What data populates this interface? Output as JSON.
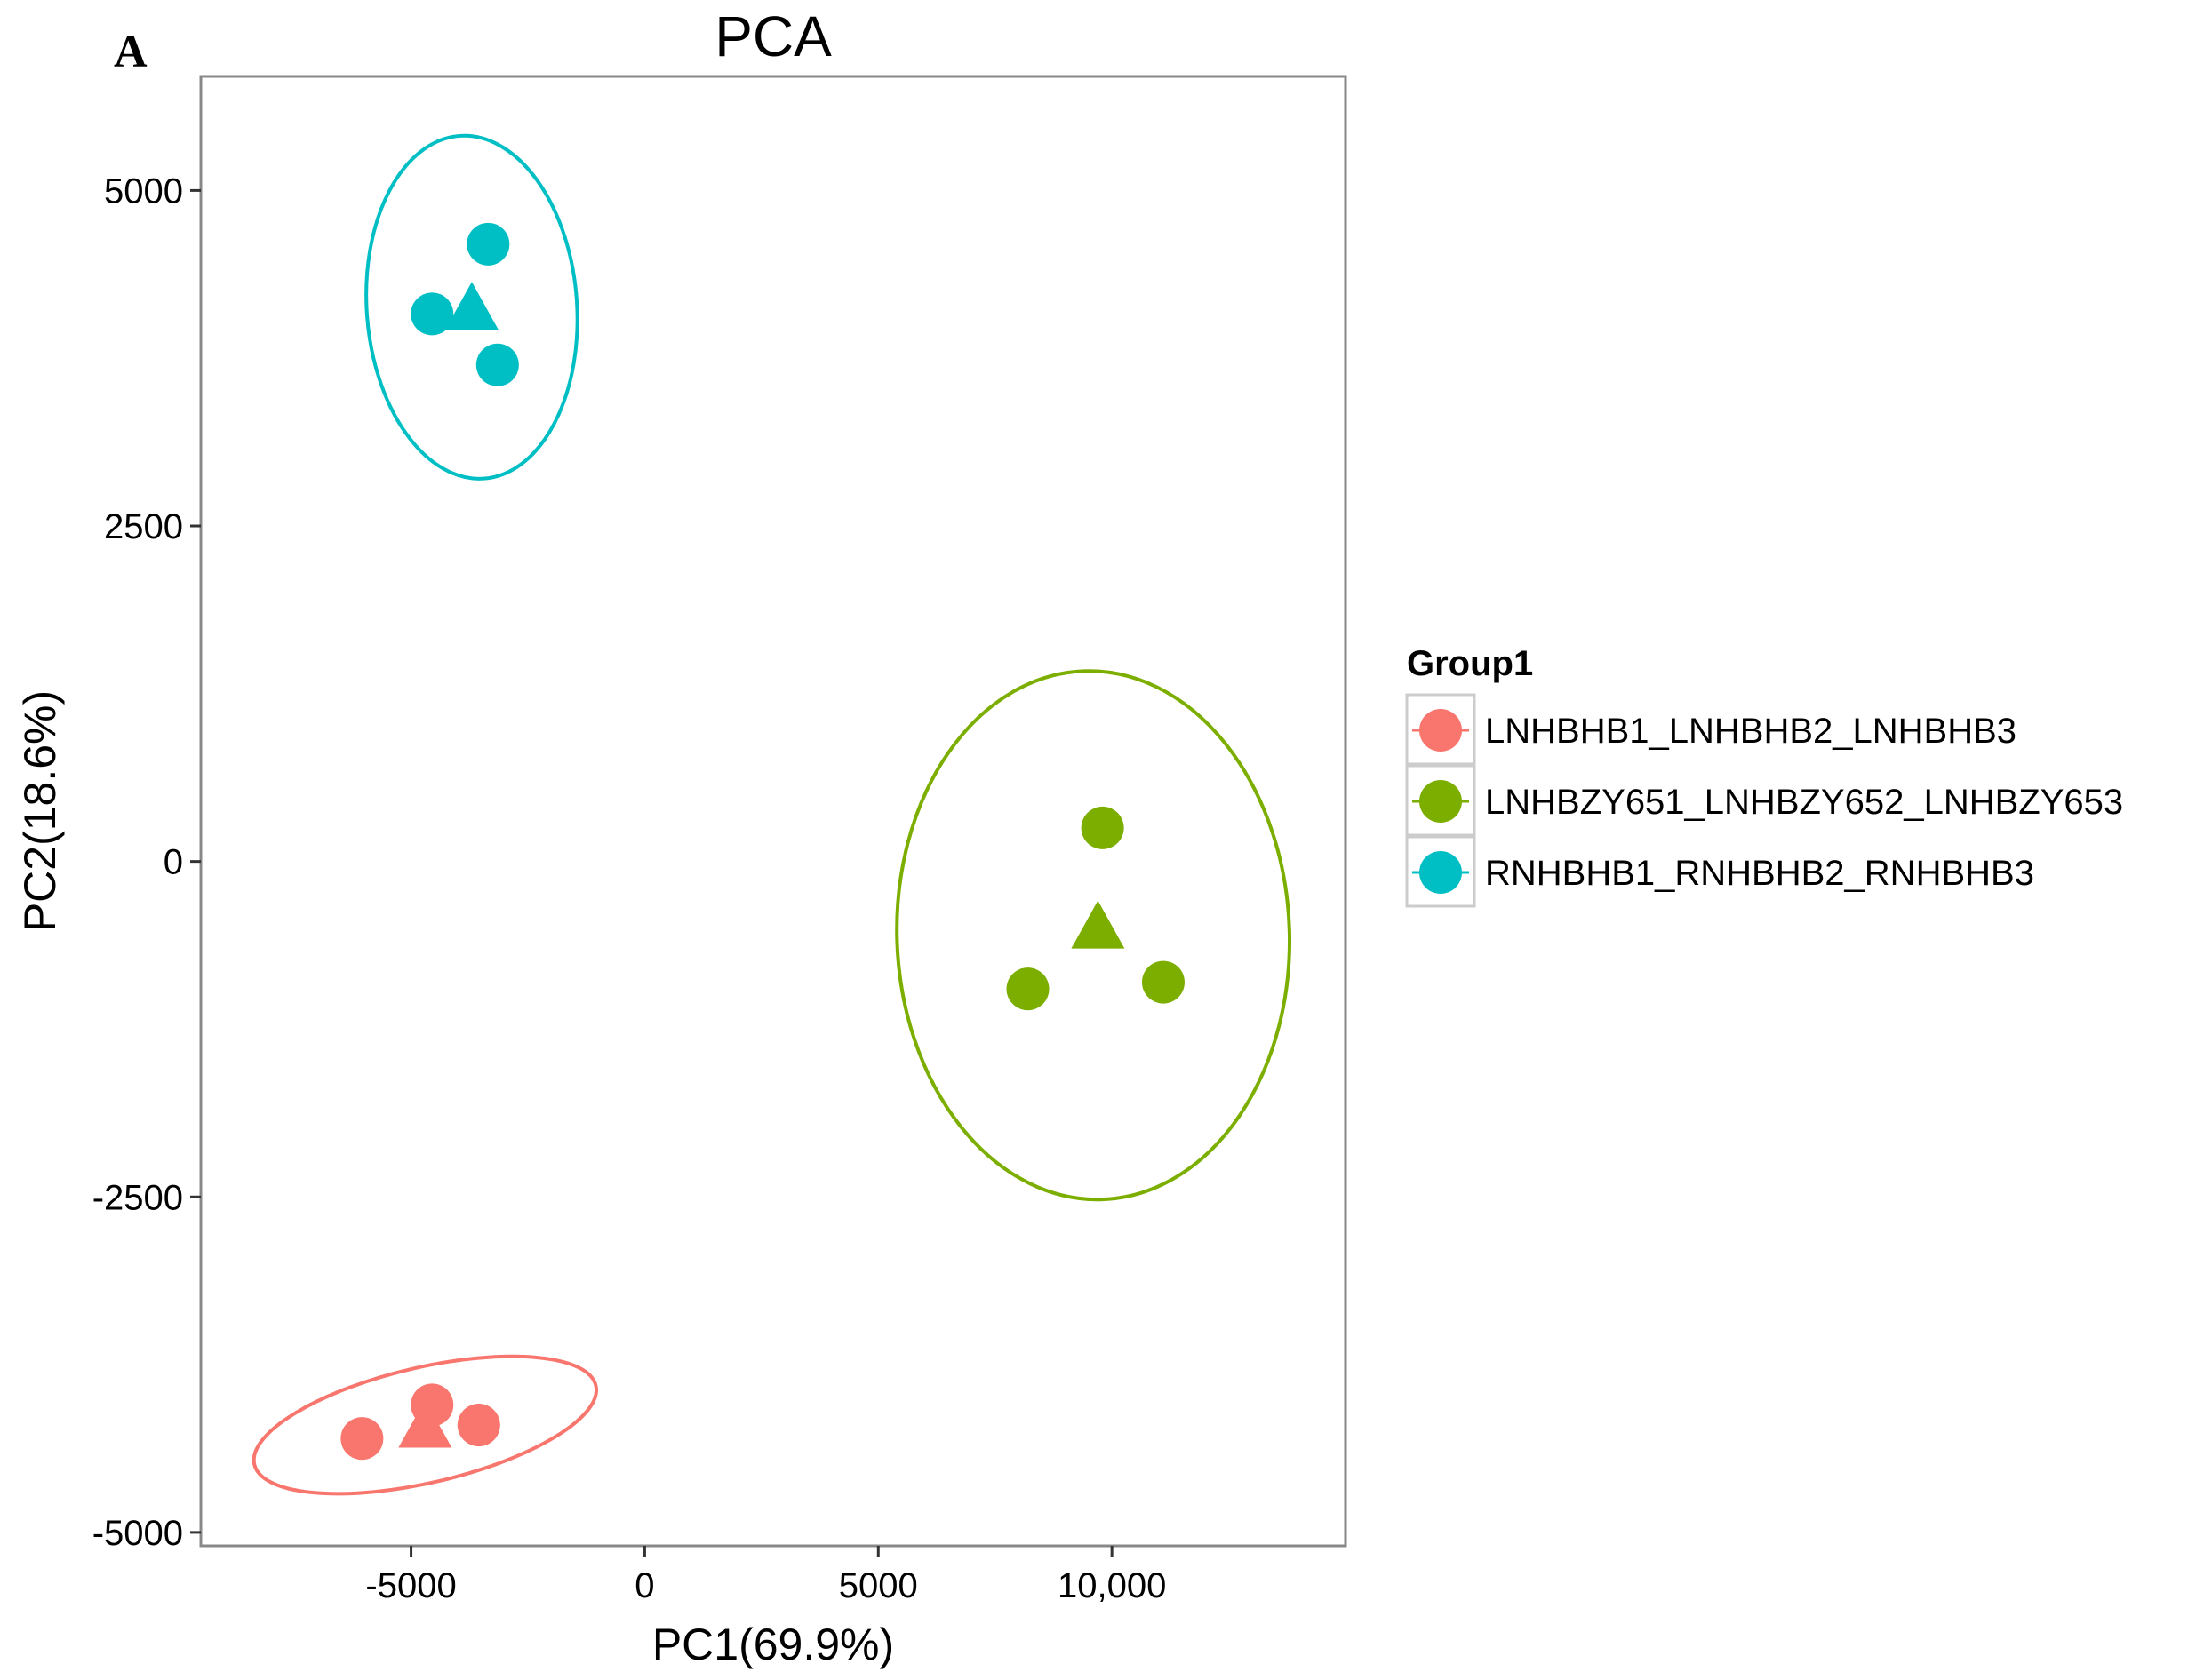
{
  "chart_data": {
    "type": "scatter",
    "panel_label": "A",
    "title": "PCA",
    "xlabel": "PC1(69.9%)",
    "ylabel": "PC2(18.6%)",
    "xlim": [
      -9500,
      15000
    ],
    "ylim": [
      -5100,
      5850
    ],
    "xticks": [
      {
        "value": -5000,
        "label": "-5000"
      },
      {
        "value": 0,
        "label": "0"
      },
      {
        "value": 5000,
        "label": "5000"
      },
      {
        "value": 10000,
        "label": "10,000"
      }
    ],
    "yticks": [
      {
        "value": 5000,
        "label": "5000"
      },
      {
        "value": 2500,
        "label": "2500"
      },
      {
        "value": 0,
        "label": "0"
      },
      {
        "value": -2500,
        "label": "-2500"
      },
      {
        "value": -5000,
        "label": "-5000"
      }
    ],
    "grid": false,
    "legend": {
      "title": "Group1",
      "position": "right"
    },
    "series": [
      {
        "name": "LNHBHB1_LNHBHB2_LNHBHB3",
        "color": "#F8766D",
        "points": [
          {
            "x": -6050,
            "y": -4300
          },
          {
            "x": -4550,
            "y": -4050
          },
          {
            "x": -3550,
            "y": -4200
          }
        ],
        "centroid": {
          "x": -4700,
          "y": -4200
        },
        "ellipse": {
          "cx": -4700,
          "cy": -4200,
          "rx": 3750,
          "ry": 430,
          "angle": 13
        }
      },
      {
        "name": "LNHBZY651_LNHBZY652_LNHBZY653",
        "color": "#7CAE00",
        "points": [
          {
            "x": 9800,
            "y": 250
          },
          {
            "x": 8200,
            "y": -950
          },
          {
            "x": 11100,
            "y": -900
          }
        ],
        "centroid": {
          "x": 9700,
          "y": -480
        },
        "ellipse": {
          "cx": 9600,
          "cy": -550,
          "rx": 4200,
          "ry": 1970,
          "angle": 2
        }
      },
      {
        "name": "RNHBHB1_RNHBHB2_RNHBHB3",
        "color": "#00BFC4",
        "points": [
          {
            "x": -3350,
            "y": 4600
          },
          {
            "x": -4550,
            "y": 4080
          },
          {
            "x": -3150,
            "y": 3700
          }
        ],
        "centroid": {
          "x": -3700,
          "y": 4130
        },
        "ellipse": {
          "cx": -3700,
          "cy": 4130,
          "rx": 2250,
          "ry": 1280,
          "angle": 4
        }
      }
    ]
  }
}
